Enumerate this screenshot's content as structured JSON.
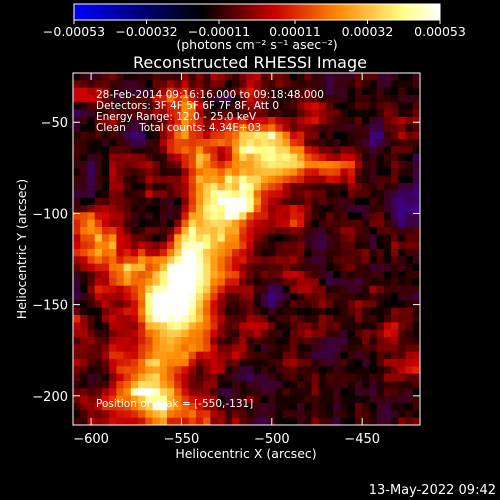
{
  "chart_data": {
    "type": "heatmap",
    "title": "Reconstructed RHESSI Image",
    "xlabel": "Heliocentric X (arcsec)",
    "ylabel": "Heliocentric Y (arcsec)",
    "xlim": [
      -610,
      -418
    ],
    "ylim": [
      -216,
      -23
    ],
    "xticks": [
      -600,
      -550,
      -500,
      -450
    ],
    "xtick_labels": [
      "−600",
      "−550",
      "−500",
      "−450"
    ],
    "yticks": [
      -50,
      -100,
      -150,
      -200
    ],
    "ytick_labels": [
      "−50",
      "−100",
      "−150",
      "−200"
    ],
    "colorbar": {
      "min": -0.00053,
      "max": 0.00053,
      "tick_values": [
        -0.00053,
        -0.00032,
        -0.00011,
        0.00011,
        0.00032,
        0.00053
      ],
      "tick_labels": [
        "−0.00053",
        "−0.00032",
        "−0.00011",
        "0.00011",
        "0.00032",
        "0.00053"
      ],
      "units": "(photons cm⁻² s⁻¹ asec⁻²)",
      "colormap": [
        "#0000ff",
        "#000000",
        "#cc0000",
        "#ff8800",
        "#ffff88",
        "#ffffff"
      ]
    },
    "annotations": [
      "28-Feb-2014 09:16:16.000 to 09:18:48.000",
      "Detectors: 3F 4F 5F 6F 7F 8F, Att 0",
      "Energy Range: 12.0 - 25.0 keV",
      "Clean    Total counts: 4.34E+03"
    ],
    "peak_label": "Position of Peak = [-550,-131]",
    "peak": {
      "x": -550,
      "y": -131
    },
    "grid": false,
    "emission_ridges": [
      {
        "x": [
          -572,
          -560,
          -550,
          -540,
          -528,
          -516,
          -504
        ],
        "y": [
          -200,
          -178,
          -152,
          -131,
          -108,
          -86,
          -70
        ],
        "width": 14,
        "peak": 0.00053
      },
      {
        "x": [
          -600,
          -590,
          -578,
          -565,
          -552
        ],
        "y": [
          -112,
          -124,
          -136,
          -146,
          -152
        ],
        "width": 9,
        "peak": 0.00036
      },
      {
        "x": [
          -553,
          -546,
          -540,
          -535
        ],
        "y": [
          -40,
          -58,
          -78,
          -96
        ],
        "width": 8,
        "peak": 0.00034
      },
      {
        "x": [
          -505,
          -495,
          -480,
          -470,
          -462
        ],
        "y": [
          -60,
          -72,
          -76,
          -73,
          -74
        ],
        "width": 7,
        "peak": 0.00024
      },
      {
        "x": [
          -560,
          -548,
          -540
        ],
        "y": [
          -205,
          -208,
          -212
        ],
        "width": 7,
        "peak": 0.0003
      }
    ]
  },
  "timestamp": "13-May-2022 09:42"
}
